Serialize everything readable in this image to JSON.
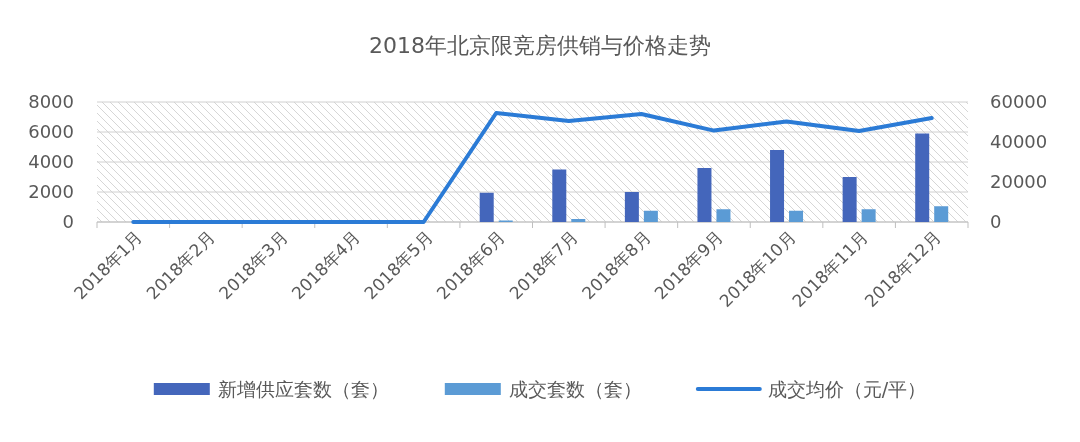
{
  "chart_data": {
    "type": "bar",
    "title": "2018年北京限竞房供销与价格走势",
    "categories": [
      "2018年1月",
      "2018年2月",
      "2018年3月",
      "2018年4月",
      "2018年5月",
      "2018年6月",
      "2018年7月",
      "2018年8月",
      "2018年9月",
      "2018年10月",
      "2018年11月",
      "2018年12月"
    ],
    "series": [
      {
        "name": "新增供应套数（套）",
        "color": "#4466bb",
        "values": [
          null,
          null,
          null,
          null,
          null,
          1950,
          3500,
          2000,
          3600,
          4800,
          3000,
          5900
        ]
      },
      {
        "name": "成交套数（套）",
        "color": "#5b9bd5",
        "values": [
          null,
          null,
          null,
          null,
          null,
          100,
          200,
          750,
          850,
          750,
          850,
          1050
        ]
      },
      {
        "name": "成交均价（元/平）",
        "type": "line",
        "axis": "y2",
        "color": "#2b7bd6",
        "values": [
          0,
          0,
          0,
          0,
          0,
          54500,
          50500,
          54000,
          45700,
          50300,
          45500,
          52000
        ]
      }
    ],
    "ylim": [
      0,
      8000
    ],
    "yticks": [
      0,
      2000,
      4000,
      6000,
      8000
    ],
    "y2lim": [
      0,
      60000
    ],
    "y2ticks": [
      0,
      20000,
      40000,
      60000
    ],
    "grid": "y",
    "legend": "bottom"
  }
}
